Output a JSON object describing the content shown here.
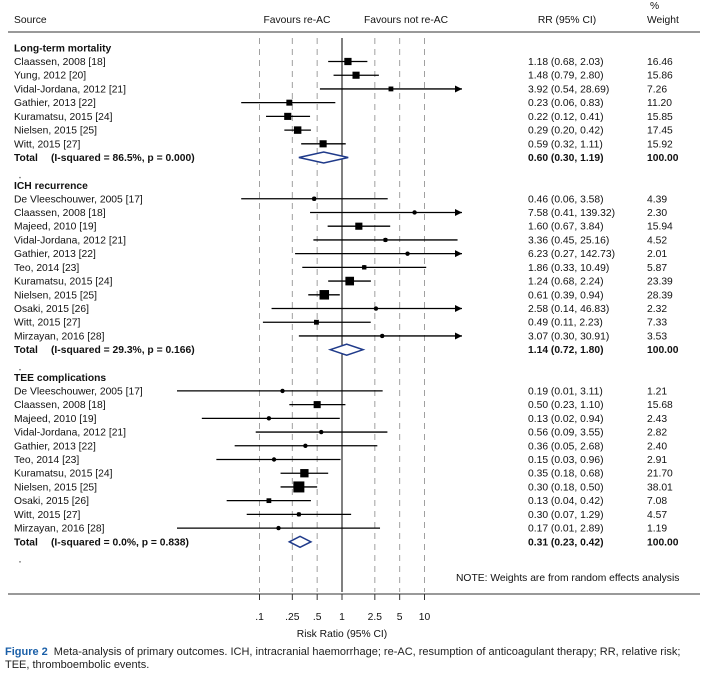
{
  "chart_data": {
    "type": "forest",
    "headers": {
      "source": "Source",
      "favours_left": "Favours re-AC",
      "favours_right": "Favours not re-AC",
      "rr": "RR (95% CI)",
      "weight_line1": "%",
      "weight_line2": "Weight"
    },
    "x_scale": "log",
    "x_range": [
      0.1,
      10
    ],
    "x_ticks": [
      {
        "value": 0.1,
        "label": ".1"
      },
      {
        "value": 0.25,
        "label": ".25"
      },
      {
        "value": 0.5,
        "label": ".5"
      },
      {
        "value": 1,
        "label": "1"
      },
      {
        "value": 2.5,
        "label": "2.5"
      },
      {
        "value": 5,
        "label": "5"
      },
      {
        "value": 10,
        "label": "10"
      }
    ],
    "xlabel": "Risk Ratio (95% CI)",
    "note": "NOTE: Weights are from random effects analysis",
    "groups": [
      {
        "title": "Long-term mortality",
        "studies": [
          {
            "source": "Claassen, 2008 [18]",
            "rr": 1.18,
            "lo": 0.68,
            "hi": 2.03,
            "rr_text": "1.18 (0.68, 2.03)",
            "weight": "16.46"
          },
          {
            "source": "Yung, 2012 [20]",
            "rr": 1.48,
            "lo": 0.79,
            "hi": 2.8,
            "rr_text": "1.48 (0.79, 2.80)",
            "weight": "15.86"
          },
          {
            "source": "Vidal-Jordana, 2012 [21]",
            "rr": 3.92,
            "lo": 0.54,
            "hi": 28.69,
            "rr_text": "3.92 (0.54, 28.69)",
            "weight": "7.26"
          },
          {
            "source": "Gathier, 2013 [22]",
            "rr": 0.23,
            "lo": 0.06,
            "hi": 0.83,
            "rr_text": "0.23 (0.06, 0.83)",
            "weight": "11.20"
          },
          {
            "source": "Kuramatsu, 2015 [24]",
            "rr": 0.22,
            "lo": 0.12,
            "hi": 0.41,
            "rr_text": "0.22 (0.12, 0.41)",
            "weight": "15.85"
          },
          {
            "source": "Nielsen, 2015 [25]",
            "rr": 0.29,
            "lo": 0.2,
            "hi": 0.42,
            "rr_text": "0.29 (0.20, 0.42)",
            "weight": "17.45"
          },
          {
            "source": "Witt, 2015 [27]",
            "rr": 0.59,
            "lo": 0.32,
            "hi": 1.11,
            "rr_text": "0.59 (0.32, 1.11)",
            "weight": "15.92"
          }
        ],
        "total": {
          "label": "Total",
          "het": "(I-squared = 86.5%, p = 0.000)",
          "rr": 0.6,
          "lo": 0.3,
          "hi": 1.19,
          "rr_text": "0.60 (0.30, 1.19)",
          "weight": "100.00"
        }
      },
      {
        "title": "ICH recurrence",
        "studies": [
          {
            "source": "De Vleeschouwer, 2005 [17]",
            "rr": 0.46,
            "lo": 0.06,
            "hi": 3.58,
            "rr_text": "0.46 (0.06, 3.58)",
            "weight": "4.39"
          },
          {
            "source": "Claassen, 2008 [18]",
            "rr": 7.58,
            "lo": 0.41,
            "hi": 139.32,
            "rr_text": "7.58 (0.41, 139.32)",
            "weight": "2.30"
          },
          {
            "source": "Majeed, 2010 [19]",
            "rr": 1.6,
            "lo": 0.67,
            "hi": 3.84,
            "rr_text": "1.60 (0.67, 3.84)",
            "weight": "15.94"
          },
          {
            "source": "Vidal-Jordana, 2012 [21]",
            "rr": 3.36,
            "lo": 0.45,
            "hi": 25.16,
            "rr_text": "3.36 (0.45, 25.16)",
            "weight": "4.52"
          },
          {
            "source": "Gathier, 2013 [22]",
            "rr": 6.23,
            "lo": 0.27,
            "hi": 142.73,
            "rr_text": "6.23 (0.27, 142.73)",
            "weight": "2.01"
          },
          {
            "source": "Teo, 2014 [23]",
            "rr": 1.86,
            "lo": 0.33,
            "hi": 10.49,
            "rr_text": "1.86 (0.33, 10.49)",
            "weight": "5.87"
          },
          {
            "source": "Kuramatsu, 2015 [24]",
            "rr": 1.24,
            "lo": 0.68,
            "hi": 2.24,
            "rr_text": "1.24 (0.68, 2.24)",
            "weight": "23.39"
          },
          {
            "source": "Nielsen, 2015 [25]",
            "rr": 0.61,
            "lo": 0.39,
            "hi": 0.94,
            "rr_text": "0.61 (0.39, 0.94)",
            "weight": "28.39"
          },
          {
            "source": "Osaki, 2015 [26]",
            "rr": 2.58,
            "lo": 0.14,
            "hi": 46.83,
            "rr_text": "2.58 (0.14, 46.83)",
            "weight": "2.32"
          },
          {
            "source": "Witt, 2015 [27]",
            "rr": 0.49,
            "lo": 0.11,
            "hi": 2.23,
            "rr_text": "0.49 (0.11, 2.23)",
            "weight": "7.33"
          },
          {
            "source": "Mirzayan, 2016 [28]",
            "rr": 3.07,
            "lo": 0.3,
            "hi": 30.91,
            "rr_text": "3.07 (0.30, 30.91)",
            "weight": "3.53"
          }
        ],
        "total": {
          "label": "Total",
          "het": "(I-squared = 29.3%, p = 0.166)",
          "rr": 1.14,
          "lo": 0.72,
          "hi": 1.8,
          "rr_text": "1.14 (0.72, 1.80)",
          "weight": "100.00"
        }
      },
      {
        "title": "TEE complications",
        "studies": [
          {
            "source": "De Vleeschouwer, 2005 [17]",
            "rr": 0.19,
            "lo": 0.01,
            "hi": 3.11,
            "rr_text": "0.19 (0.01, 3.11)",
            "weight": "1.21"
          },
          {
            "source": "Claassen, 2008 [18]",
            "rr": 0.5,
            "lo": 0.23,
            "hi": 1.1,
            "rr_text": "0.50 (0.23, 1.10)",
            "weight": "15.68"
          },
          {
            "source": "Majeed, 2010 [19]",
            "rr": 0.13,
            "lo": 0.02,
            "hi": 0.94,
            "rr_text": "0.13 (0.02, 0.94)",
            "weight": "2.43"
          },
          {
            "source": "Vidal-Jordana, 2012 [21]",
            "rr": 0.56,
            "lo": 0.09,
            "hi": 3.55,
            "rr_text": "0.56 (0.09, 3.55)",
            "weight": "2.82"
          },
          {
            "source": "Gathier, 2013 [22]",
            "rr": 0.36,
            "lo": 0.05,
            "hi": 2.68,
            "rr_text": "0.36 (0.05, 2.68)",
            "weight": "2.40"
          },
          {
            "source": "Teo, 2014 [23]",
            "rr": 0.15,
            "lo": 0.03,
            "hi": 0.96,
            "rr_text": "0.15 (0.03, 0.96)",
            "weight": "2.91"
          },
          {
            "source": "Kuramatsu, 2015 [24]",
            "rr": 0.35,
            "lo": 0.18,
            "hi": 0.68,
            "rr_text": "0.35 (0.18, 0.68)",
            "weight": "21.70"
          },
          {
            "source": "Nielsen, 2015 [25]",
            "rr": 0.3,
            "lo": 0.18,
            "hi": 0.5,
            "rr_text": "0.30 (0.18, 0.50)",
            "weight": "38.01"
          },
          {
            "source": "Osaki, 2015 [26]",
            "rr": 0.13,
            "lo": 0.04,
            "hi": 0.42,
            "rr_text": "0.13 (0.04, 0.42)",
            "weight": "7.08"
          },
          {
            "source": "Witt, 2015 [27]",
            "rr": 0.3,
            "lo": 0.07,
            "hi": 1.29,
            "rr_text": "0.30 (0.07, 1.29)",
            "weight": "4.57"
          },
          {
            "source": "Mirzayan, 2016 [28]",
            "rr": 0.17,
            "lo": 0.01,
            "hi": 2.89,
            "rr_text": "0.17 (0.01, 2.89)",
            "weight": "1.19"
          }
        ],
        "total": {
          "label": "Total",
          "het": "(I-squared = 0.0%, p = 0.838)",
          "rr": 0.31,
          "lo": 0.23,
          "hi": 0.42,
          "rr_text": "0.31 (0.23, 0.42)",
          "weight": "100.00"
        }
      }
    ],
    "colors": {
      "diamond": "#1f3a8a",
      "marks": "#000000",
      "gridline": "#a0a0a0"
    }
  },
  "caption": {
    "label": "Figure 2",
    "text": "Meta-analysis of primary outcomes. ICH, intracranial haemorrhage; re-AC, resumption of anticoagulant therapy; RR, relative risk; TEE, thromboembolic events."
  }
}
